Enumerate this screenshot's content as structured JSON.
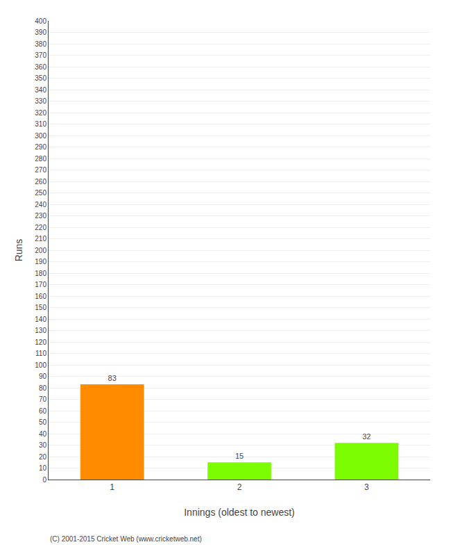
{
  "chart_data": {
    "type": "bar",
    "categories": [
      "1",
      "2",
      "3"
    ],
    "values": [
      83,
      15,
      32
    ],
    "colors": [
      "#ff8c00",
      "#7cfc00",
      "#7cfc00"
    ],
    "xlabel": "Innings (oldest to newest)",
    "ylabel": "Runs",
    "ylim": [
      0,
      400
    ],
    "yticks": [
      0,
      10,
      20,
      30,
      40,
      50,
      60,
      70,
      80,
      90,
      100,
      110,
      120,
      130,
      140,
      150,
      160,
      170,
      180,
      190,
      200,
      210,
      220,
      230,
      240,
      250,
      260,
      270,
      280,
      290,
      300,
      310,
      320,
      330,
      340,
      350,
      360,
      370,
      380,
      390,
      400
    ],
    "grid": true,
    "data_labels": true,
    "annotations": [
      "(C) 2001-2015 Cricket Web (www.cricketweb.net)"
    ]
  }
}
